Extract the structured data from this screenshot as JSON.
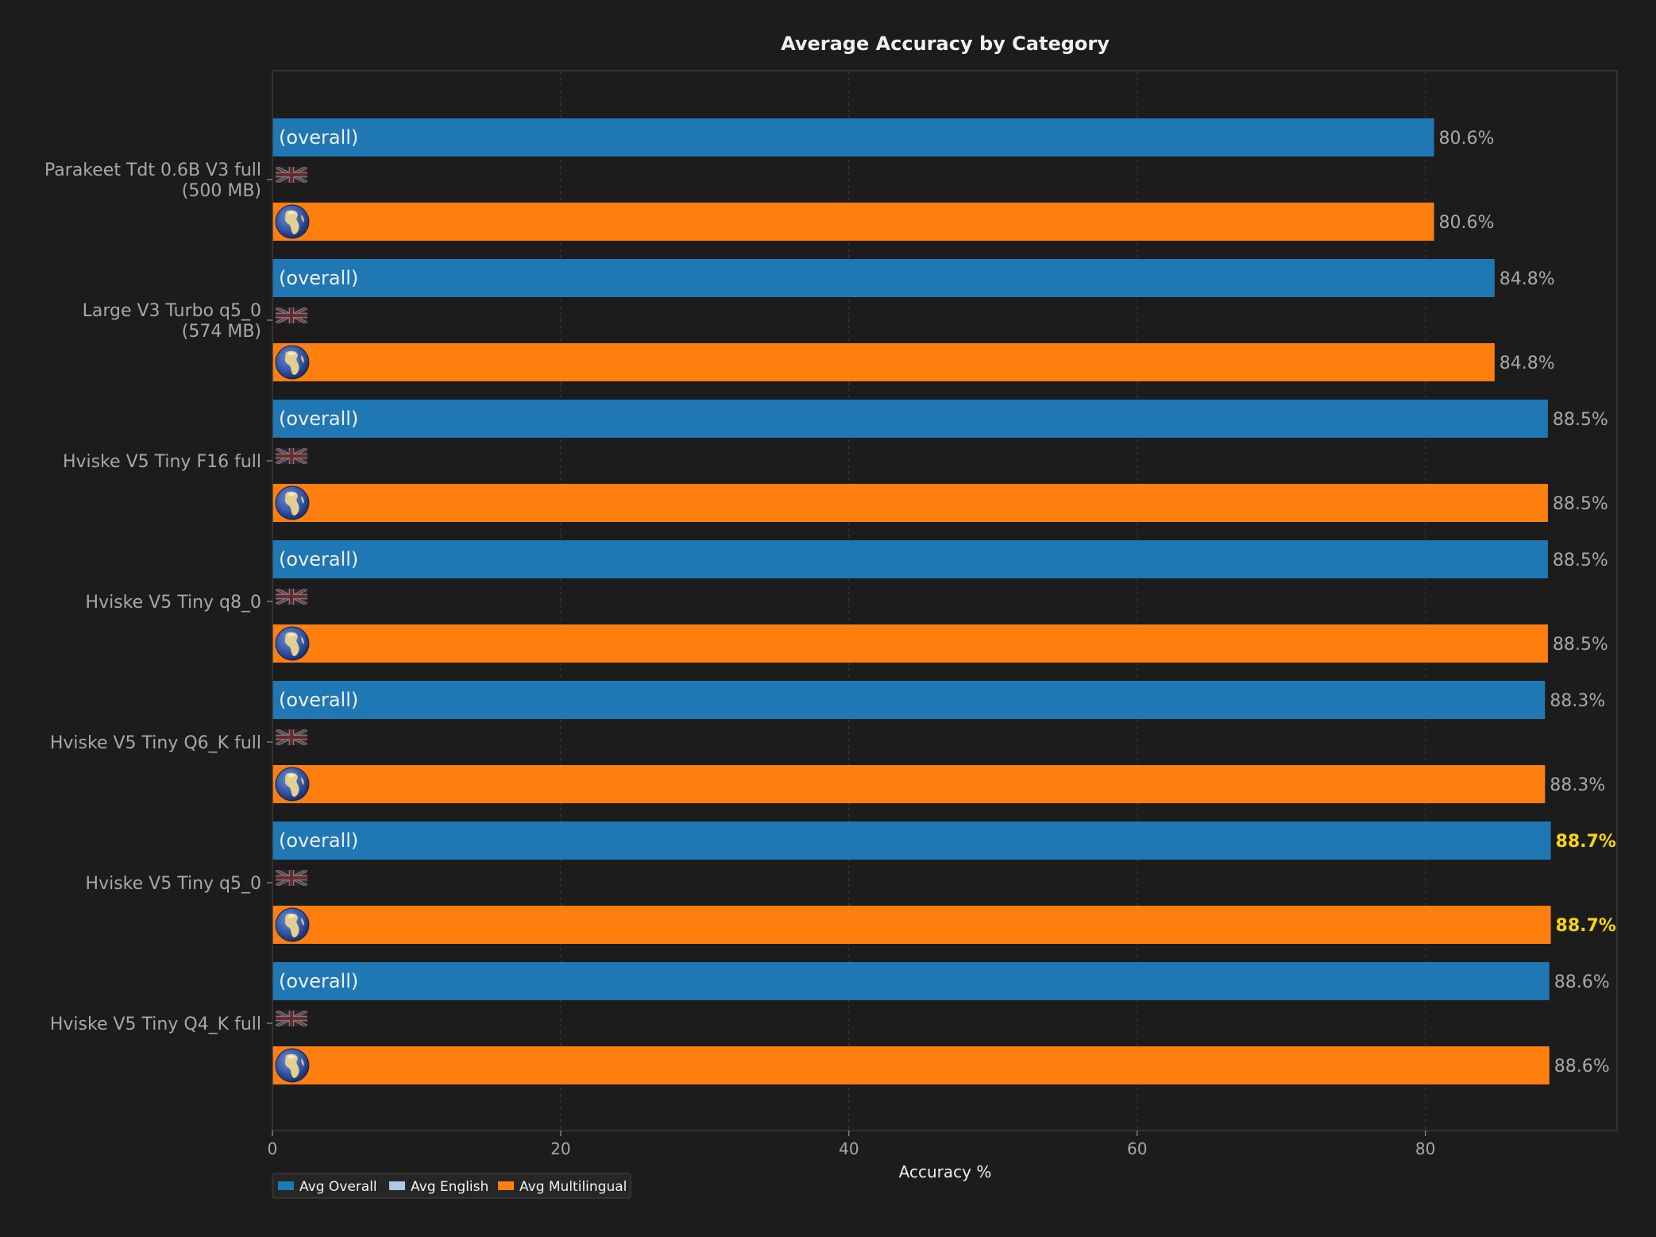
{
  "chart_data": {
    "type": "bar",
    "orientation": "horizontal",
    "title": "Average Accuracy by Category",
    "xlabel": "Accuracy %",
    "ylabel": "",
    "xlim": [
      0,
      93.3
    ],
    "xticks": [
      0,
      20,
      40,
      60,
      80
    ],
    "grid": true,
    "legend_position": "bottom-left",
    "categories": [
      "Parakeet Tdt 0.6B V3 full\n(500 MB)",
      "Large V3 Turbo q5_0\n(574 MB)",
      "Hviske V5 Tiny F16 full",
      "Hviske V5 Tiny q8_0",
      "Hviske V5 Tiny Q6_K full",
      "Hviske V5 Tiny q5_0",
      "Hviske V5 Tiny Q4_K full"
    ],
    "series": [
      {
        "name": "Avg Overall",
        "color": "#1f77b4",
        "bar_label": "(overall)",
        "values": [
          80.6,
          84.8,
          88.5,
          88.5,
          88.3,
          88.7,
          88.6
        ],
        "value_labels": [
          "80.6%",
          "84.8%",
          "88.5%",
          "88.5%",
          "88.3%",
          "88.7%",
          "88.6%"
        ]
      },
      {
        "name": "Avg English",
        "color": "#aec7e8",
        "bar_icon": "uk-flag-icon",
        "values": [
          null,
          null,
          null,
          null,
          null,
          null,
          null
        ],
        "value_labels": []
      },
      {
        "name": "Avg Multilingual",
        "color": "#ff7f0e",
        "bar_icon": "globe-icon",
        "values": [
          80.6,
          84.8,
          88.5,
          88.5,
          88.3,
          88.7,
          88.6
        ],
        "value_labels": [
          "80.6%",
          "84.8%",
          "88.5%",
          "88.5%",
          "88.3%",
          "88.7%",
          "88.6%"
        ]
      }
    ],
    "highlight_index": 5,
    "highlight_color": "#f5d60f",
    "colors": {
      "background": "#1c1c1c",
      "axes_frame": "#3a3a3a",
      "grid": "#3a3a3a",
      "text_muted": "#a8a8a8",
      "text_light": "#f0f0f0"
    }
  }
}
